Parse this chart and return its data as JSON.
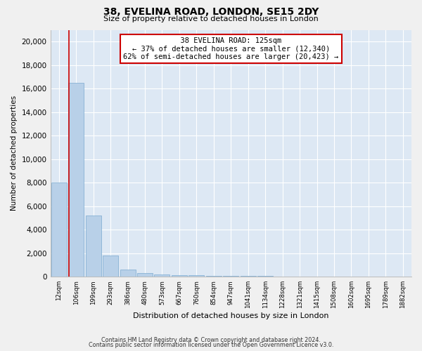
{
  "title1": "38, EVELINA ROAD, LONDON, SE15 2DY",
  "title2": "Size of property relative to detached houses in London",
  "xlabel": "Distribution of detached houses by size in London",
  "ylabel": "Number of detached properties",
  "bar_color": "#b8d0e8",
  "bar_edge_color": "#7aaacf",
  "background_color": "#dde8f4",
  "grid_color": "#ffffff",
  "annotation_box_color": "#cc0000",
  "annotation_line_color": "#cc0000",
  "categories": [
    "12sqm",
    "106sqm",
    "199sqm",
    "293sqm",
    "386sqm",
    "480sqm",
    "573sqm",
    "667sqm",
    "760sqm",
    "854sqm",
    "947sqm",
    "1041sqm",
    "1134sqm",
    "1228sqm",
    "1321sqm",
    "1415sqm",
    "1508sqm",
    "1602sqm",
    "1695sqm",
    "1789sqm",
    "1882sqm"
  ],
  "values": [
    8000,
    16500,
    5200,
    1800,
    580,
    340,
    200,
    150,
    120,
    100,
    80,
    60,
    50,
    40,
    30,
    20,
    15,
    10,
    8,
    5,
    3
  ],
  "property_label": "38 EVELINA ROAD: 125sqm",
  "pct_smaller": "37% of detached houses are smaller (12,340)",
  "pct_larger": "62% of semi-detached houses are larger (20,423)",
  "vline_bar_index": 1,
  "ylim": [
    0,
    21000
  ],
  "yticks": [
    0,
    2000,
    4000,
    6000,
    8000,
    10000,
    12000,
    14000,
    16000,
    18000,
    20000
  ],
  "fig_bg": "#f0f0f0",
  "footer1": "Contains HM Land Registry data © Crown copyright and database right 2024.",
  "footer2": "Contains public sector information licensed under the Open Government Licence v3.0."
}
